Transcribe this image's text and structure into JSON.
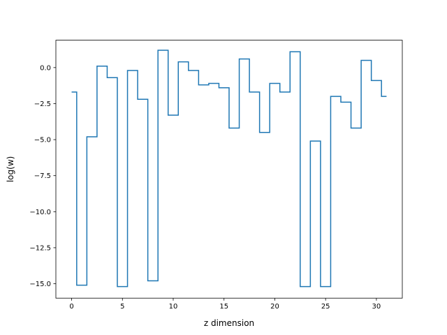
{
  "chart_data": {
    "type": "line",
    "drawstyle": "steps-mid",
    "title": "",
    "xlabel": "z dimension",
    "ylabel": "log(w)",
    "xlim": [
      -1.55,
      32.55
    ],
    "ylim": [
      -16.0,
      1.9
    ],
    "xticks": [
      0,
      5,
      10,
      15,
      20,
      25,
      30
    ],
    "xtick_labels": [
      "0",
      "5",
      "10",
      "15",
      "20",
      "25",
      "30"
    ],
    "yticks": [
      -15.0,
      -12.5,
      -10.0,
      -7.5,
      -5.0,
      -2.5,
      0.0
    ],
    "ytick_labels": [
      "−15.0",
      "−12.5",
      "−10.0",
      "−7.5",
      "−5.0",
      "−2.5",
      "0.0"
    ],
    "grid": false,
    "series": [
      {
        "color": "#1f77b4",
        "x": [
          0,
          1,
          2,
          3,
          4,
          5,
          6,
          7,
          8,
          9,
          10,
          11,
          12,
          13,
          14,
          15,
          16,
          17,
          18,
          19,
          20,
          21,
          22,
          23,
          24,
          25,
          26,
          27,
          28,
          29,
          30,
          31
        ],
        "y": [
          -1.7,
          -15.1,
          -4.8,
          0.1,
          -0.7,
          -15.2,
          -0.2,
          -2.2,
          -14.8,
          1.2,
          -3.3,
          0.4,
          -0.2,
          -1.2,
          -1.1,
          -1.4,
          -4.2,
          0.6,
          -1.7,
          -4.5,
          -1.1,
          -1.7,
          1.1,
          -15.2,
          -5.1,
          -15.2,
          -2.0,
          -2.4,
          -4.2,
          0.5,
          -0.9,
          -2.0
        ]
      }
    ]
  }
}
